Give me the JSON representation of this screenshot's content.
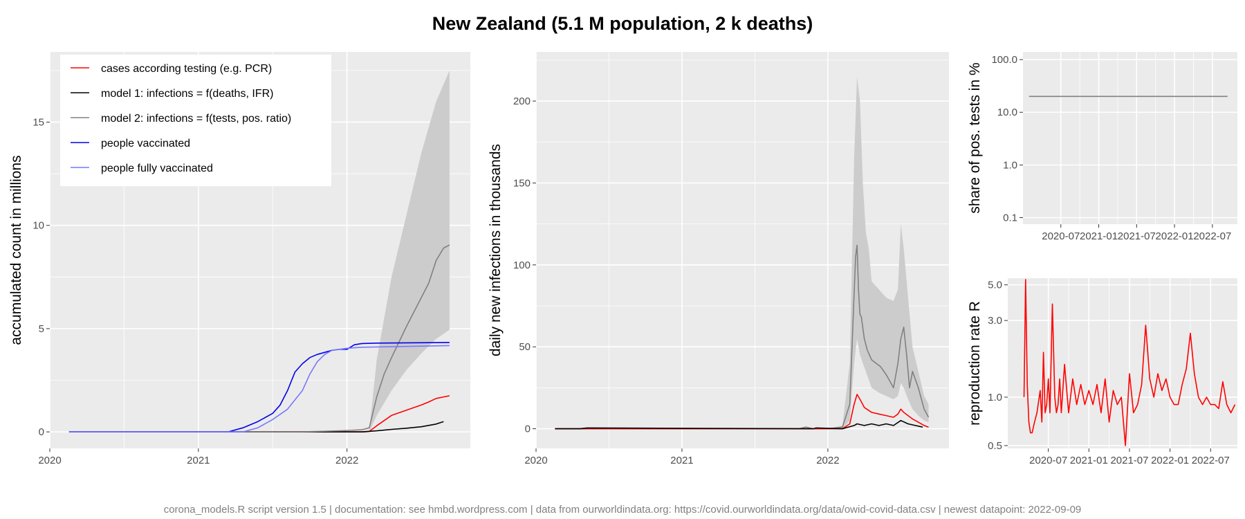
{
  "title": "New Zealand (5.1 M population, 2 k deaths)",
  "caption": "corona_models.R script version 1.5 | documentation: see hmbd.wordpress.com | data from ourworldindata.org: https://covid.ourworldindata.org/data/owid-covid-data.csv | newest datapoint: 2022-09-09",
  "colors": {
    "panel_bg": "#ebebeb",
    "grid": "#ffffff",
    "cases": "#ff0000",
    "model1": "#000000",
    "model2": "#808080",
    "model2_band": "#cccccc",
    "vaccinated": "#0000ee",
    "fully_vaccinated": "#7777ff"
  },
  "legend": {
    "items": [
      {
        "label": "cases according testing (e.g. PCR)",
        "color": "#ff0000"
      },
      {
        "label": "model 1: infections = f(deaths, IFR)",
        "color": "#000000"
      },
      {
        "label": "model 2: infections = f(tests, pos. ratio)",
        "color": "#808080"
      },
      {
        "label": "people vaccinated",
        "color": "#0000ee"
      },
      {
        "label": "people fully vaccinated",
        "color": "#7777ff"
      }
    ]
  },
  "chart_data": [
    {
      "type": "line",
      "id": "accumulated",
      "ylabel": "accumulated count in millions",
      "xlim": [
        2020.0,
        2022.83
      ],
      "ylim": [
        -0.8,
        18.4
      ],
      "xticks": [
        {
          "value": 2020,
          "label": "2020"
        },
        {
          "value": 2021,
          "label": "2021"
        },
        {
          "value": 2022,
          "label": "2022"
        }
      ],
      "yticks": [
        {
          "value": 0,
          "label": "0"
        },
        {
          "value": 5,
          "label": "5"
        },
        {
          "value": 10,
          "label": "10"
        },
        {
          "value": 15,
          "label": "15"
        }
      ],
      "band": {
        "x": [
          2022.15,
          2022.2,
          2022.3,
          2022.4,
          2022.5,
          2022.6,
          2022.69
        ],
        "lower": [
          0.0,
          0.8,
          2.0,
          3.0,
          3.8,
          4.5,
          4.95
        ],
        "upper": [
          0.1,
          3.5,
          7.5,
          10.5,
          13.5,
          16.0,
          17.5
        ]
      },
      "series": [
        {
          "color": "#ff0000",
          "x": [
            2020.13,
            2022.12,
            2022.15,
            2022.2,
            2022.3,
            2022.4,
            2022.5,
            2022.55,
            2022.6,
            2022.69
          ],
          "y": [
            0,
            0,
            0.02,
            0.3,
            0.8,
            1.05,
            1.3,
            1.45,
            1.62,
            1.75
          ]
        },
        {
          "color": "#000000",
          "x": [
            2020.13,
            2022.1,
            2022.2,
            2022.3,
            2022.4,
            2022.5,
            2022.6,
            2022.65
          ],
          "y": [
            0,
            0,
            0.05,
            0.12,
            0.18,
            0.25,
            0.38,
            0.5
          ]
        },
        {
          "color": "#808080",
          "x": [
            2020.13,
            2021.7,
            2021.95,
            2022.1,
            2022.15,
            2022.2,
            2022.25,
            2022.3,
            2022.4,
            2022.5,
            2022.55,
            2022.6,
            2022.65,
            2022.69
          ],
          "y": [
            0,
            0,
            0.05,
            0.1,
            0.2,
            1.7,
            2.8,
            3.6,
            5.1,
            6.5,
            7.2,
            8.3,
            8.9,
            9.05
          ]
        },
        {
          "color": "#0000ee",
          "x": [
            2020.13,
            2021.2,
            2021.3,
            2021.4,
            2021.5,
            2021.55,
            2021.6,
            2021.65,
            2021.7,
            2021.75,
            2021.8,
            2021.85,
            2021.9,
            2021.95,
            2022.0,
            2022.05,
            2022.1,
            2022.2,
            2022.69
          ],
          "y": [
            0,
            0,
            0.2,
            0.5,
            0.9,
            1.3,
            2.0,
            2.9,
            3.3,
            3.6,
            3.75,
            3.85,
            3.95,
            4.0,
            4.0,
            4.22,
            4.28,
            4.3,
            4.33
          ]
        },
        {
          "color": "#7777ff",
          "x": [
            2020.13,
            2021.3,
            2021.4,
            2021.5,
            2021.6,
            2021.7,
            2021.75,
            2021.8,
            2021.85,
            2021.9,
            2022.0,
            2022.1,
            2022.69
          ],
          "y": [
            0,
            0,
            0.2,
            0.6,
            1.1,
            2.0,
            2.8,
            3.4,
            3.75,
            3.95,
            4.05,
            4.1,
            4.18
          ]
        }
      ]
    },
    {
      "type": "line",
      "id": "daily",
      "ylabel": "daily new infections in thousands",
      "xlim": [
        2020.0,
        2022.83
      ],
      "ylim": [
        -12,
        230
      ],
      "xticks": [
        {
          "value": 2020,
          "label": "2020"
        },
        {
          "value": 2021,
          "label": "2021"
        },
        {
          "value": 2022,
          "label": "2022"
        }
      ],
      "yticks": [
        {
          "value": 0,
          "label": "0"
        },
        {
          "value": 50,
          "label": "50"
        },
        {
          "value": 100,
          "label": "100"
        },
        {
          "value": 150,
          "label": "150"
        },
        {
          "value": 200,
          "label": "200"
        }
      ],
      "band": {
        "x": [
          2021.8,
          2022.0,
          2022.1,
          2022.15,
          2022.18,
          2022.2,
          2022.22,
          2022.24,
          2022.26,
          2022.28,
          2022.3,
          2022.35,
          2022.4,
          2022.45,
          2022.48,
          2022.5,
          2022.52,
          2022.55,
          2022.58,
          2022.62,
          2022.66,
          2022.69
        ],
        "lower": [
          0,
          0,
          0,
          5,
          40,
          55,
          45,
          40,
          35,
          30,
          25,
          22,
          20,
          18,
          20,
          28,
          25,
          18,
          12,
          8,
          5,
          4
        ],
        "upper": [
          0,
          0,
          2,
          40,
          165,
          215,
          200,
          150,
          120,
          110,
          90,
          85,
          80,
          78,
          85,
          125,
          110,
          80,
          50,
          35,
          20,
          15
        ]
      },
      "series": [
        {
          "color": "#808080",
          "x": [
            2020.13,
            2021.8,
            2021.85,
            2021.9,
            2022.0,
            2022.1,
            2022.15,
            2022.17,
            2022.19,
            2022.2,
            2022.21,
            2022.22,
            2022.23,
            2022.25,
            2022.27,
            2022.3,
            2022.33,
            2022.36,
            2022.4,
            2022.45,
            2022.48,
            2022.5,
            2022.52,
            2022.54,
            2022.56,
            2022.58,
            2022.62,
            2022.66,
            2022.69
          ],
          "y": [
            0,
            0,
            1,
            0,
            0,
            1,
            15,
            60,
            105,
            112,
            85,
            70,
            68,
            55,
            48,
            42,
            40,
            38,
            33,
            25,
            40,
            55,
            62,
            45,
            25,
            35,
            25,
            12,
            7
          ]
        },
        {
          "color": "#ff0000",
          "x": [
            2020.13,
            2022.1,
            2022.15,
            2022.18,
            2022.2,
            2022.22,
            2022.25,
            2022.3,
            2022.35,
            2022.4,
            2022.45,
            2022.48,
            2022.5,
            2022.52,
            2022.55,
            2022.58,
            2022.62,
            2022.66,
            2022.69
          ],
          "y": [
            0,
            0,
            3,
            15,
            21,
            18,
            13,
            10,
            9,
            8,
            7,
            9,
            12,
            10,
            8,
            6,
            4,
            2,
            1
          ]
        },
        {
          "color": "#000000",
          "x": [
            2020.13,
            2020.3,
            2020.35,
            2021.9,
            2021.92,
            2022.1,
            2022.18,
            2022.2,
            2022.25,
            2022.3,
            2022.35,
            2022.4,
            2022.45,
            2022.5,
            2022.55,
            2022.6,
            2022.65
          ],
          "y": [
            0,
            0,
            0.5,
            0,
            0.5,
            0,
            2,
            3,
            2,
            3,
            2,
            3,
            2,
            5,
            3,
            2,
            1
          ]
        }
      ]
    },
    {
      "type": "line",
      "id": "positive_share",
      "ylabel": "share of pos. tests in %",
      "yscale": "log10",
      "xlim": [
        2020.0,
        2022.83
      ],
      "ylim": [
        0.075,
        140
      ],
      "xticks": [
        {
          "value": 2020.5,
          "label": "2020-07"
        },
        {
          "value": 2021.0,
          "label": "2021-01"
        },
        {
          "value": 2021.5,
          "label": "2021-07"
        },
        {
          "value": 2022.0,
          "label": "2022-01"
        },
        {
          "value": 2022.5,
          "label": "2022-07"
        }
      ],
      "yticks": [
        {
          "value": 0.1,
          "label": "0.1"
        },
        {
          "value": 1.0,
          "label": "1.0"
        },
        {
          "value": 10.0,
          "label": "10.0"
        },
        {
          "value": 100.0,
          "label": "100.0"
        }
      ],
      "series": [
        {
          "color": "#808080",
          "x": [
            2020.08,
            2022.7
          ],
          "y": [
            20,
            20
          ]
        }
      ]
    },
    {
      "type": "line",
      "id": "reproduction",
      "ylabel": "reproduction rate R",
      "yscale": "log10",
      "xlim": [
        2020.0,
        2022.83
      ],
      "ylim": [
        0.48,
        5.5
      ],
      "xticks": [
        {
          "value": 2020.5,
          "label": "2020-07"
        },
        {
          "value": 2021.0,
          "label": "2021-01"
        },
        {
          "value": 2021.5,
          "label": "2021-07"
        },
        {
          "value": 2022.0,
          "label": "2022-01"
        },
        {
          "value": 2022.5,
          "label": "2022-07"
        }
      ],
      "yticks": [
        {
          "value": 0.5,
          "label": "0.5"
        },
        {
          "value": 1.0,
          "label": "1.0"
        },
        {
          "value": 3.0,
          "label": "3.0"
        },
        {
          "value": 5.0,
          "label": "5.0"
        }
      ],
      "series": [
        {
          "color": "#ff0000",
          "x": [
            2020.2,
            2020.22,
            2020.24,
            2020.26,
            2020.28,
            2020.3,
            2020.33,
            2020.36,
            2020.4,
            2020.42,
            2020.44,
            2020.46,
            2020.48,
            2020.5,
            2020.52,
            2020.55,
            2020.58,
            2020.6,
            2020.62,
            2020.64,
            2020.66,
            2020.7,
            2020.75,
            2020.8,
            2020.85,
            2020.9,
            2020.95,
            2021.0,
            2021.05,
            2021.1,
            2021.15,
            2021.2,
            2021.25,
            2021.3,
            2021.35,
            2021.4,
            2021.45,
            2021.5,
            2021.55,
            2021.6,
            2021.65,
            2021.7,
            2021.75,
            2021.8,
            2021.85,
            2021.9,
            2021.95,
            2022.0,
            2022.05,
            2022.1,
            2022.15,
            2022.2,
            2022.25,
            2022.3,
            2022.35,
            2022.4,
            2022.45,
            2022.5,
            2022.55,
            2022.6,
            2022.65,
            2022.7,
            2022.75,
            2022.8
          ],
          "y": [
            1.0,
            5.4,
            1.2,
            0.7,
            0.6,
            0.6,
            0.7,
            0.8,
            1.1,
            0.7,
            1.9,
            0.8,
            0.9,
            1.3,
            0.8,
            3.8,
            1.0,
            0.8,
            0.9,
            1.3,
            0.8,
            1.6,
            0.8,
            1.3,
            0.9,
            1.2,
            0.9,
            1.1,
            0.9,
            1.2,
            0.8,
            1.3,
            0.7,
            1.1,
            0.9,
            1.0,
            0.5,
            1.4,
            0.8,
            0.9,
            1.2,
            2.8,
            1.3,
            1.0,
            1.4,
            1.1,
            1.3,
            1.0,
            0.9,
            0.9,
            1.2,
            1.5,
            2.5,
            1.4,
            1.0,
            0.9,
            1.0,
            0.9,
            0.9,
            0.85,
            1.25,
            0.9,
            0.8,
            0.9
          ]
        }
      ]
    }
  ]
}
